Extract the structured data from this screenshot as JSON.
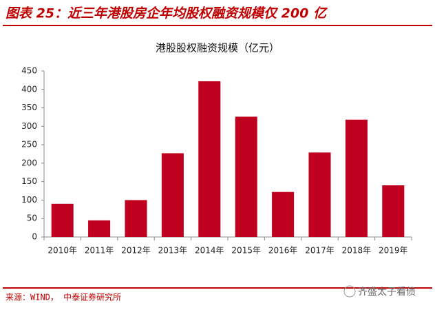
{
  "header": {
    "title": "图表 25：近三年港股房企年均股权融资规模仅 200 亿"
  },
  "chart_data": {
    "type": "bar",
    "title": "港股股权融资规模（亿元）",
    "categories": [
      "2010年",
      "2011年",
      "2012年",
      "2013年",
      "2014年",
      "2015年",
      "2016年",
      "2017年",
      "2018年",
      "2019年"
    ],
    "values": [
      90,
      45,
      100,
      227,
      422,
      326,
      122,
      229,
      318,
      140
    ],
    "color": "#c0001f",
    "ylim": [
      0,
      450
    ],
    "yticks": [
      0,
      50,
      100,
      150,
      200,
      250,
      300,
      350,
      400,
      450
    ],
    "grid": false
  },
  "footer": {
    "source": "来源：WIND， 中泰证券研究所",
    "watermark": "齐盛太子看债"
  }
}
